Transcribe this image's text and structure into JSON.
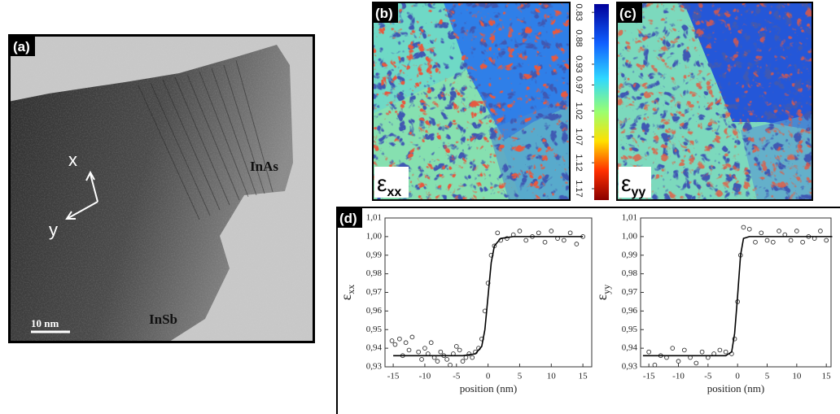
{
  "panels": {
    "a": {
      "label": "(a)",
      "axis_x": "x",
      "axis_y": "y",
      "material_top": "InAs",
      "material_bottom": "InSb",
      "scale_bar": "10 nm"
    },
    "b": {
      "label": "(b)",
      "symbol": "ε",
      "subscript": "xx"
    },
    "c": {
      "label": "(c)",
      "symbol": "ε",
      "subscript": "yy"
    },
    "d": {
      "label": "(d)"
    }
  },
  "colorbar": {
    "lim": [
      0.814,
      1.192
    ],
    "ticks": [
      0.83,
      0.88,
      0.93,
      0.97,
      1.02,
      1.07,
      1.12,
      1.17
    ]
  },
  "chart_data": [
    {
      "type": "scatter",
      "xlabel": "position (nm)",
      "ylabel": "ε",
      "ylabel_sub": "xx",
      "xlim": [
        -16.3,
        16.4
      ],
      "ylim": [
        0.93,
        1.01
      ],
      "xticks": [
        -15,
        -10,
        -5,
        0,
        5,
        10,
        15
      ],
      "yticks": [
        {
          "value": 0.93,
          "label": "0,93"
        },
        {
          "value": 0.94,
          "label": "0,94"
        },
        {
          "value": 0.95,
          "label": "0,95"
        },
        {
          "value": 0.96,
          "label": "0,96"
        },
        {
          "value": 0.97,
          "label": "0,97"
        },
        {
          "value": 0.98,
          "label": "0,98"
        },
        {
          "value": 0.99,
          "label": "0,99"
        },
        {
          "value": 1.0,
          "label": "1,00"
        },
        {
          "value": 1.01,
          "label": "1,01"
        }
      ],
      "series": [
        {
          "mode": "markers",
          "color": "#333333",
          "x": [
            -15.2,
            -14.7,
            -14,
            -13.5,
            -13,
            -12.5,
            -12,
            -11,
            -10.5,
            -10,
            -9.5,
            -9,
            -8.5,
            -8,
            -7.5,
            -7,
            -6.5,
            -6,
            -5.5,
            -5,
            -4.5,
            -4,
            -3.5,
            -3,
            -2.5,
            -2,
            -1.5,
            -1,
            -0.5,
            0,
            0.5,
            1,
            1.5,
            2,
            3,
            4,
            5,
            6,
            7,
            8,
            9,
            10,
            11,
            12,
            13,
            14,
            15
          ],
          "values": [
            0.944,
            0.942,
            0.945,
            0.936,
            0.943,
            0.939,
            0.946,
            0.938,
            0.934,
            0.94,
            0.937,
            0.943,
            0.935,
            0.933,
            0.938,
            0.936,
            0.934,
            0.931,
            0.937,
            0.941,
            0.939,
            0.933,
            0.935,
            0.937,
            0.935,
            0.938,
            0.94,
            0.945,
            0.96,
            0.975,
            0.99,
            0.995,
            1.002,
            0.998,
            0.999,
            1.001,
            1.003,
            0.998,
            1.0,
            1.002,
            0.997,
            1.003,
            0.999,
            0.998,
            1.002,
            0.996,
            1.0
          ]
        },
        {
          "mode": "line",
          "color": "#000000",
          "x": [
            -15,
            -4,
            -2,
            -1,
            -0.5,
            0,
            0.5,
            1,
            2,
            4,
            15
          ],
          "values": [
            0.936,
            0.936,
            0.937,
            0.941,
            0.95,
            0.968,
            0.986,
            0.995,
            0.999,
            1.0,
            1.0
          ]
        }
      ]
    },
    {
      "type": "scatter",
      "xlabel": "position (nm)",
      "ylabel": "ε",
      "ylabel_sub": "yy",
      "xlim": [
        -16.4,
        15.8
      ],
      "ylim": [
        0.93,
        1.01
      ],
      "xticks": [
        -15,
        -10,
        -5,
        0,
        5,
        10,
        15
      ],
      "yticks": [
        {
          "value": 0.93,
          "label": "0,93"
        },
        {
          "value": 0.94,
          "label": "0,94"
        },
        {
          "value": 0.95,
          "label": "0,95"
        },
        {
          "value": 0.96,
          "label": "0,96"
        },
        {
          "value": 0.97,
          "label": "0,97"
        },
        {
          "value": 0.98,
          "label": "0,98"
        },
        {
          "value": 0.99,
          "label": "0,99"
        },
        {
          "value": 1.0,
          "label": "1,00"
        },
        {
          "value": 1.01,
          "label": "1,01"
        }
      ],
      "series": [
        {
          "mode": "markers",
          "color": "#333333",
          "x": [
            -15,
            -14,
            -13,
            -12,
            -11,
            -10,
            -9,
            -8,
            -7,
            -6,
            -5,
            -4,
            -3,
            -2,
            -1,
            -0.5,
            0,
            0.5,
            1,
            2,
            3,
            4,
            5,
            6,
            7,
            8,
            9,
            10,
            11,
            12,
            13,
            14,
            15
          ],
          "values": [
            0.938,
            0.931,
            0.936,
            0.935,
            0.94,
            0.933,
            0.939,
            0.935,
            0.932,
            0.938,
            0.935,
            0.937,
            0.939,
            0.938,
            0.937,
            0.945,
            0.965,
            0.99,
            1.005,
            1.004,
            0.997,
            1.002,
            0.998,
            0.997,
            1.003,
            1.001,
            0.998,
            1.003,
            0.997,
            1.0,
            0.999,
            1.003,
            0.998
          ]
        },
        {
          "mode": "line",
          "color": "#000000",
          "x": [
            -16,
            -2,
            -1,
            -0.5,
            0,
            0.5,
            1,
            2,
            16
          ],
          "values": [
            0.936,
            0.936,
            0.938,
            0.948,
            0.968,
            0.99,
            0.999,
            1.0,
            1.0
          ]
        }
      ]
    }
  ]
}
